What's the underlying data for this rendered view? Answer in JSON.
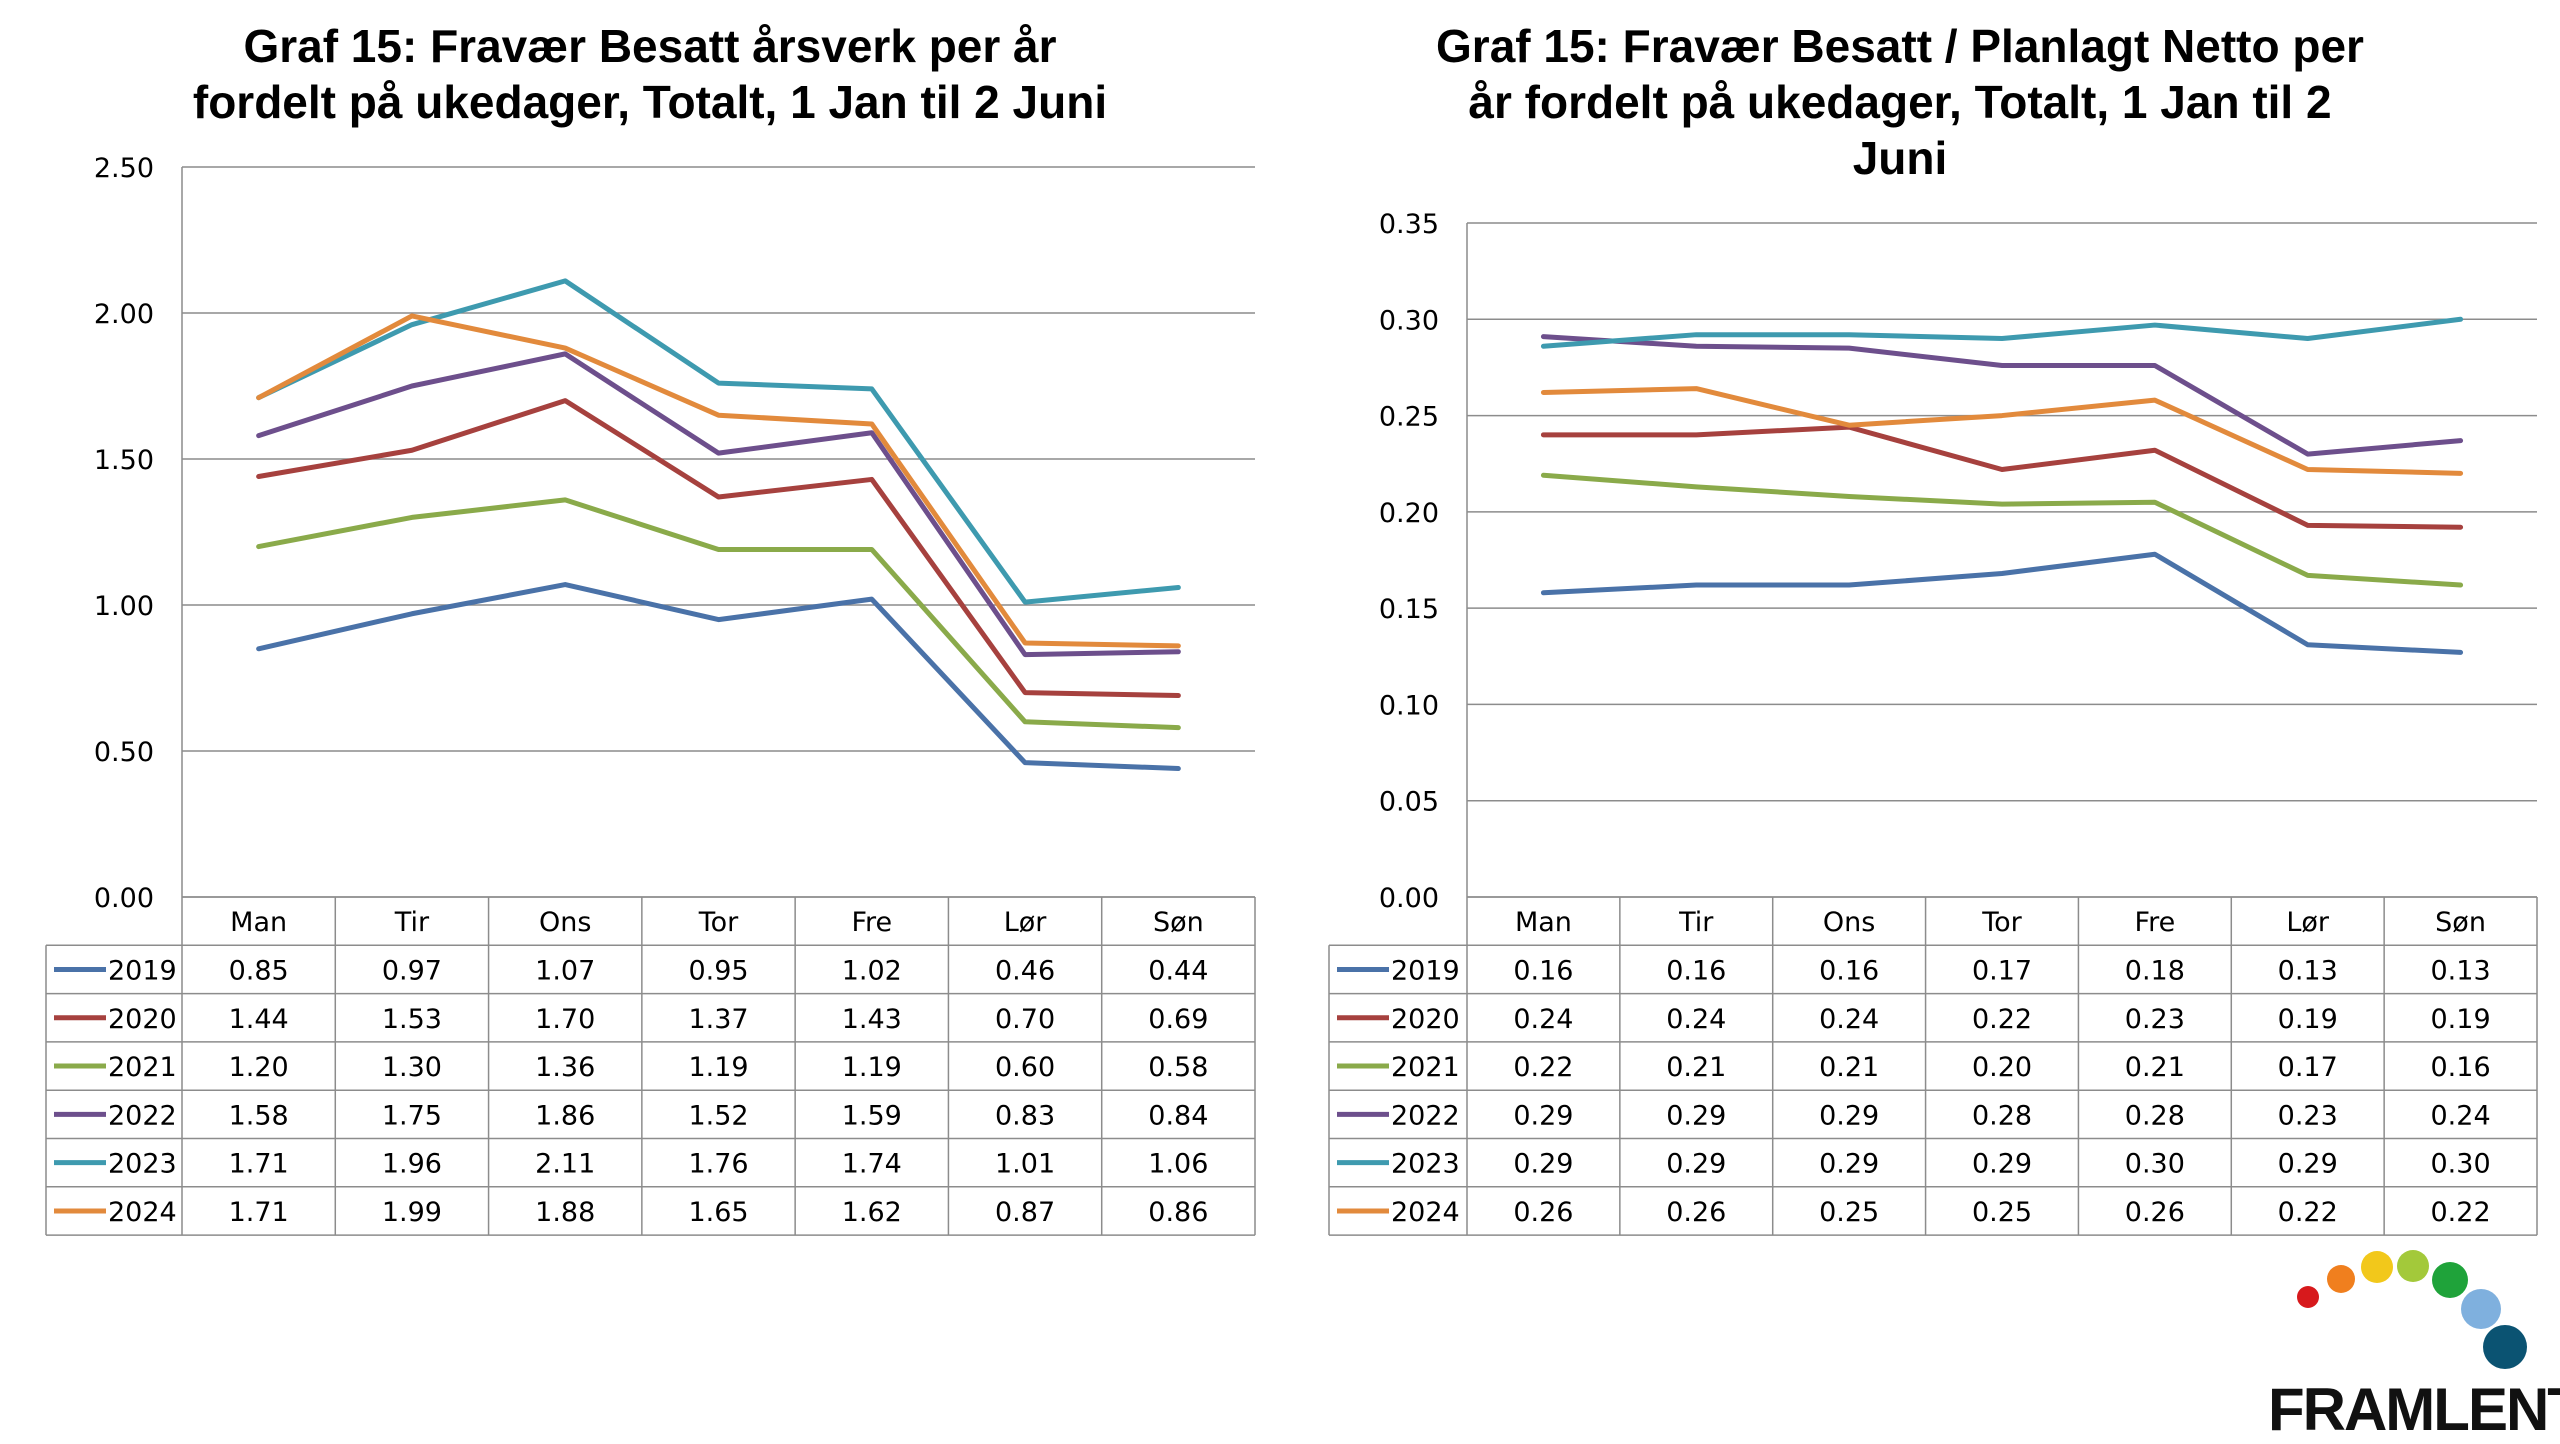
{
  "charts": [
    {
      "id": "left",
      "title_lines": [
        "Graf 15: Fravær Besatt årsverk per år",
        "fordelt på ukedager, Totalt, 1 Jan til 2 Juni"
      ],
      "chart_data": {
        "type": "line",
        "title": "Graf 15: Fravær Besatt årsverk per år fordelt på ukedager, Totalt, 1 Jan til 2 Juni",
        "categories": [
          "Man",
          "Tir",
          "Ons",
          "Tor",
          "Fre",
          "Lør",
          "Søn"
        ],
        "ylim": [
          0,
          2.5
        ],
        "yticks": [
          0,
          0.5,
          1.0,
          1.5,
          2.0,
          2.5
        ],
        "grid": true,
        "legend": "data-table-below",
        "series": [
          {
            "name": "2019",
            "color": "#4A72A8",
            "values": [
              0.85,
              0.97,
              1.07,
              0.95,
              1.02,
              0.46,
              0.44
            ]
          },
          {
            "name": "2020",
            "color": "#A6413E",
            "values": [
              1.44,
              1.53,
              1.7,
              1.37,
              1.43,
              0.7,
              0.69
            ]
          },
          {
            "name": "2021",
            "color": "#8AAA4A",
            "values": [
              1.2,
              1.3,
              1.36,
              1.19,
              1.19,
              0.6,
              0.58
            ]
          },
          {
            "name": "2022",
            "color": "#6D4F8C",
            "values": [
              1.58,
              1.75,
              1.86,
              1.52,
              1.59,
              0.83,
              0.84
            ]
          },
          {
            "name": "2023",
            "color": "#3E9AAF",
            "values": [
              1.71,
              1.96,
              2.11,
              1.76,
              1.74,
              1.01,
              1.06
            ]
          },
          {
            "name": "2024",
            "color": "#E28A3C",
            "values": [
              1.71,
              1.99,
              1.88,
              1.65,
              1.62,
              0.87,
              0.86
            ]
          }
        ]
      }
    },
    {
      "id": "right",
      "title_lines": [
        "Graf 15: Fravær Besatt / Planlagt Netto per",
        "år fordelt på ukedager, Totalt, 1 Jan til 2",
        "Juni"
      ],
      "chart_data": {
        "type": "line",
        "title": "Graf 15: Fravær Besatt / Planlagt Netto per år fordelt på ukedager, Totalt, 1 Jan til 2 Juni",
        "categories": [
          "Man",
          "Tir",
          "Ons",
          "Tor",
          "Fre",
          "Lør",
          "Søn"
        ],
        "ylim": [
          0,
          0.35
        ],
        "yticks": [
          0,
          0.05,
          0.1,
          0.15,
          0.2,
          0.25,
          0.3,
          0.35
        ],
        "grid": true,
        "legend": "data-table-below",
        "series": [
          {
            "name": "2019",
            "color": "#4A72A8",
            "values": [
              0.158,
              0.162,
              0.162,
              0.168,
              0.178,
              0.131,
              0.127
            ]
          },
          {
            "name": "2020",
            "color": "#A6413E",
            "values": [
              0.24,
              0.24,
              0.244,
              0.222,
              0.232,
              0.193,
              0.192
            ]
          },
          {
            "name": "2021",
            "color": "#8AAA4A",
            "values": [
              0.219,
              0.213,
              0.208,
              0.204,
              0.205,
              0.167,
              0.162
            ]
          },
          {
            "name": "2022",
            "color": "#6D4F8C",
            "values": [
              0.291,
              0.286,
              0.285,
              0.276,
              0.276,
              0.23,
              0.237
            ]
          },
          {
            "name": "2023",
            "color": "#3E9AAF",
            "values": [
              0.286,
              0.292,
              0.292,
              0.29,
              0.297,
              0.29,
              0.3
            ]
          },
          {
            "name": "2024",
            "color": "#E28A3C",
            "values": [
              0.262,
              0.264,
              0.245,
              0.25,
              0.258,
              0.222,
              0.22
            ]
          }
        ],
        "table_values": [
          [
            "0.16",
            "0.16",
            "0.16",
            "0.17",
            "0.18",
            "0.13",
            "0.13"
          ],
          [
            "0.24",
            "0.24",
            "0.24",
            "0.22",
            "0.23",
            "0.19",
            "0.19"
          ],
          [
            "0.22",
            "0.21",
            "0.21",
            "0.20",
            "0.21",
            "0.17",
            "0.16"
          ],
          [
            "0.29",
            "0.29",
            "0.29",
            "0.28",
            "0.28",
            "0.23",
            "0.24"
          ],
          [
            "0.29",
            "0.29",
            "0.29",
            "0.29",
            "0.30",
            "0.29",
            "0.30"
          ],
          [
            "0.26",
            "0.26",
            "0.25",
            "0.25",
            "0.26",
            "0.22",
            "0.22"
          ]
        ]
      }
    }
  ],
  "logo": {
    "text": "FRAMLENT",
    "dot_colors": [
      "#D7191C",
      "#F07F1E",
      "#F2C81B",
      "#A3C93A",
      "#1FA33A",
      "#7FB0DE",
      "#0B5372"
    ]
  }
}
